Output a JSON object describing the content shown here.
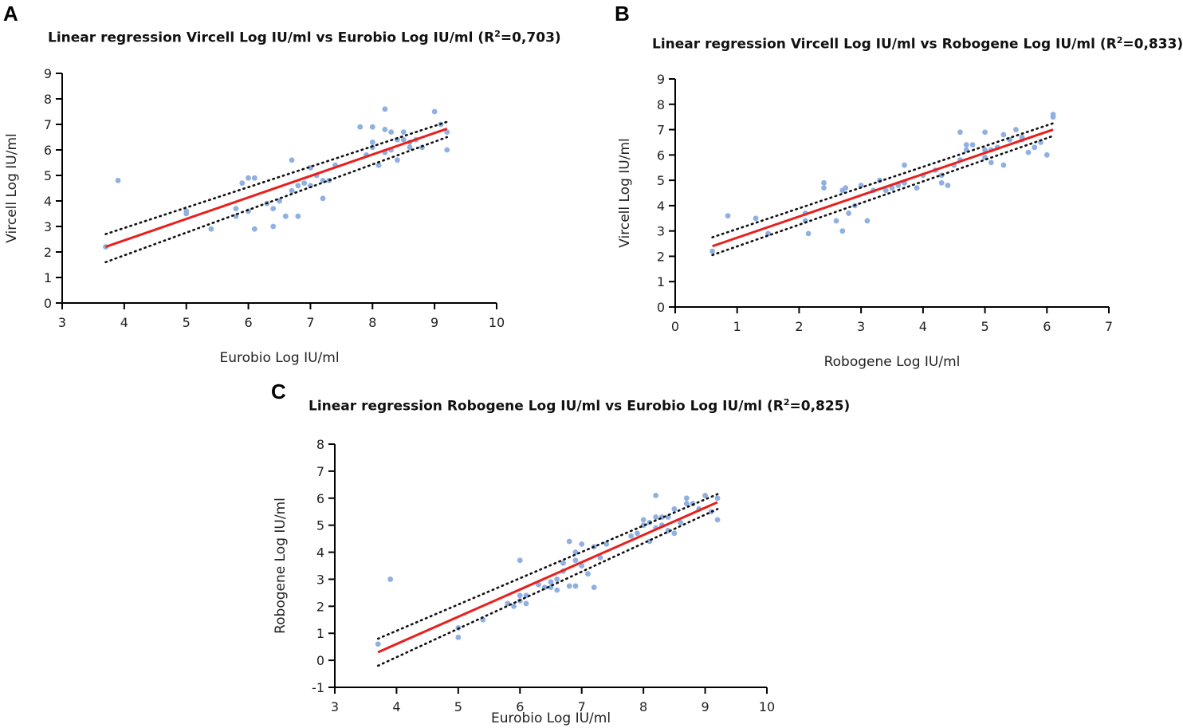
{
  "colors": {
    "points": "#8fb0e0",
    "regression": "#e8201d",
    "confidence": "#111111",
    "axes": "#000000"
  },
  "panels": [
    {
      "letter": "A"
    },
    {
      "letter": "B"
    },
    {
      "letter": "C"
    }
  ],
  "chart_data": [
    {
      "type": "scatter",
      "title": "Linear regression Vircell Log IU/ml vs Eurobio Log IU/ml",
      "r2_label": "(R",
      "r2_sup": "2",
      "r2_value": "=0,703)",
      "xlabel": "Eurobio Log IU/ml",
      "ylabel": "Vircell Log IU/ml",
      "xlim": [
        3,
        10
      ],
      "ylim": [
        0,
        9
      ],
      "xticks": [
        3,
        4,
        5,
        6,
        7,
        8,
        9,
        10
      ],
      "yticks": [
        0,
        1,
        2,
        3,
        4,
        5,
        6,
        7,
        8,
        9
      ],
      "regression": {
        "x": [
          3.7,
          9.2
        ],
        "y": [
          2.2,
          6.83
        ]
      },
      "ci_upper": {
        "x": [
          3.7,
          9.2
        ],
        "y": [
          2.7,
          7.1
        ]
      },
      "ci_lower": {
        "x": [
          3.7,
          9.2
        ],
        "y": [
          1.6,
          6.5
        ]
      },
      "points": [
        [
          3.7,
          2.2
        ],
        [
          3.9,
          4.8
        ],
        [
          5.0,
          3.6
        ],
        [
          5.0,
          3.5
        ],
        [
          5.4,
          2.9
        ],
        [
          5.8,
          3.4
        ],
        [
          5.8,
          3.7
        ],
        [
          5.9,
          4.7
        ],
        [
          6.0,
          4.9
        ],
        [
          6.0,
          3.6
        ],
        [
          6.1,
          4.9
        ],
        [
          6.1,
          2.9
        ],
        [
          6.3,
          3.9
        ],
        [
          6.4,
          3.7
        ],
        [
          6.4,
          3.0
        ],
        [
          6.5,
          4.0
        ],
        [
          6.6,
          3.4
        ],
        [
          6.7,
          5.6
        ],
        [
          6.7,
          4.4
        ],
        [
          6.8,
          4.6
        ],
        [
          6.8,
          3.4
        ],
        [
          6.9,
          4.7
        ],
        [
          7.0,
          5.3
        ],
        [
          7.0,
          4.6
        ],
        [
          7.1,
          5.0
        ],
        [
          7.2,
          4.1
        ],
        [
          7.2,
          4.8
        ],
        [
          7.3,
          4.8
        ],
        [
          7.4,
          5.4
        ],
        [
          7.8,
          6.9
        ],
        [
          7.9,
          5.8
        ],
        [
          8.0,
          6.9
        ],
        [
          8.0,
          6.3
        ],
        [
          8.0,
          6.1
        ],
        [
          8.1,
          5.4
        ],
        [
          8.2,
          7.6
        ],
        [
          8.2,
          6.8
        ],
        [
          8.2,
          5.9
        ],
        [
          8.3,
          6.7
        ],
        [
          8.3,
          6.0
        ],
        [
          8.4,
          6.4
        ],
        [
          8.4,
          5.6
        ],
        [
          8.5,
          6.7
        ],
        [
          8.5,
          6.4
        ],
        [
          8.6,
          6.3
        ],
        [
          8.6,
          6.1
        ],
        [
          8.7,
          6.4
        ],
        [
          8.8,
          6.1
        ],
        [
          9.0,
          7.5
        ],
        [
          9.1,
          7.0
        ],
        [
          9.2,
          6.7
        ],
        [
          9.2,
          6.0
        ]
      ]
    },
    {
      "type": "scatter",
      "title": "Linear regression Vircell Log IU/ml vs Robogene Log IU/ml",
      "r2_label": "(R",
      "r2_sup": "2",
      "r2_value": "=0,833)",
      "xlabel": "Robogene Log IU/ml",
      "ylabel": "Vircell Log IU/ml",
      "xlim": [
        0,
        7
      ],
      "ylim": [
        0,
        9
      ],
      "xticks": [
        0,
        1,
        2,
        3,
        4,
        5,
        6,
        7
      ],
      "yticks": [
        0,
        1,
        2,
        3,
        4,
        5,
        6,
        7,
        8,
        9
      ],
      "regression": {
        "x": [
          0.6,
          6.1
        ],
        "y": [
          2.4,
          7.0
        ]
      },
      "ci_upper": {
        "x": [
          0.6,
          6.1
        ],
        "y": [
          2.75,
          7.25
        ]
      },
      "ci_lower": {
        "x": [
          0.6,
          6.1
        ],
        "y": [
          2.05,
          6.75
        ]
      },
      "points": [
        [
          0.6,
          2.2
        ],
        [
          0.85,
          3.6
        ],
        [
          1.3,
          3.5
        ],
        [
          1.5,
          2.9
        ],
        [
          2.1,
          3.7
        ],
        [
          2.1,
          3.4
        ],
        [
          2.15,
          2.9
        ],
        [
          2.4,
          4.9
        ],
        [
          2.4,
          4.7
        ],
        [
          2.6,
          3.4
        ],
        [
          2.7,
          3.0
        ],
        [
          2.7,
          4.6
        ],
        [
          2.75,
          4.7
        ],
        [
          2.8,
          3.7
        ],
        [
          2.9,
          4.0
        ],
        [
          3.0,
          4.8
        ],
        [
          3.1,
          3.4
        ],
        [
          3.2,
          4.6
        ],
        [
          3.3,
          5.0
        ],
        [
          3.4,
          4.6
        ],
        [
          3.5,
          4.7
        ],
        [
          3.6,
          4.8
        ],
        [
          3.7,
          5.6
        ],
        [
          3.7,
          4.9
        ],
        [
          3.9,
          4.7
        ],
        [
          4.0,
          5.2
        ],
        [
          4.2,
          5.4
        ],
        [
          4.3,
          4.9
        ],
        [
          4.3,
          5.2
        ],
        [
          4.4,
          4.8
        ],
        [
          4.5,
          5.6
        ],
        [
          4.6,
          6.9
        ],
        [
          4.6,
          5.8
        ],
        [
          4.7,
          6.4
        ],
        [
          4.7,
          6.2
        ],
        [
          4.8,
          6.4
        ],
        [
          5.0,
          6.9
        ],
        [
          5.0,
          6.2
        ],
        [
          5.0,
          5.9
        ],
        [
          5.1,
          6.2
        ],
        [
          5.1,
          5.7
        ],
        [
          5.2,
          6.3
        ],
        [
          5.3,
          6.8
        ],
        [
          5.3,
          5.6
        ],
        [
          5.4,
          6.6
        ],
        [
          5.5,
          7.0
        ],
        [
          5.6,
          6.6
        ],
        [
          5.6,
          6.7
        ],
        [
          5.7,
          6.1
        ],
        [
          5.8,
          6.3
        ],
        [
          5.9,
          6.5
        ],
        [
          6.0,
          6.0
        ],
        [
          6.1,
          7.6
        ],
        [
          6.1,
          7.5
        ]
      ]
    },
    {
      "type": "scatter",
      "title": "Linear regression Robogene Log IU/ml vs Eurobio Log IU/ml",
      "r2_label": "(R",
      "r2_sup": "2",
      "r2_value": "=0,825)",
      "xlabel": "Eurobio Log IU/ml",
      "ylabel": "Robogene Log IU/ml",
      "xlim": [
        3,
        10
      ],
      "ylim": [
        -1,
        8
      ],
      "xticks": [
        3,
        4,
        5,
        6,
        7,
        8,
        9,
        10
      ],
      "yticks": [
        -1,
        0,
        1,
        2,
        3,
        4,
        5,
        6,
        7,
        8
      ],
      "regression": {
        "x": [
          3.7,
          9.2
        ],
        "y": [
          0.3,
          5.85
        ]
      },
      "ci_upper": {
        "x": [
          3.7,
          9.2
        ],
        "y": [
          0.8,
          6.15
        ]
      },
      "ci_lower": {
        "x": [
          3.7,
          9.2
        ],
        "y": [
          -0.2,
          5.6
        ]
      },
      "points": [
        [
          3.7,
          0.6
        ],
        [
          3.9,
          3.0
        ],
        [
          5.0,
          1.2
        ],
        [
          5.0,
          0.85
        ],
        [
          5.4,
          1.5
        ],
        [
          5.8,
          2.1
        ],
        [
          5.9,
          2.0
        ],
        [
          6.0,
          3.7
        ],
        [
          6.0,
          2.4
        ],
        [
          6.0,
          2.2
        ],
        [
          6.1,
          2.1
        ],
        [
          6.1,
          2.4
        ],
        [
          6.3,
          2.8
        ],
        [
          6.4,
          2.7
        ],
        [
          6.5,
          2.9
        ],
        [
          6.5,
          2.7
        ],
        [
          6.6,
          3.0
        ],
        [
          6.6,
          2.6
        ],
        [
          6.7,
          3.6
        ],
        [
          6.7,
          3.3
        ],
        [
          6.8,
          4.4
        ],
        [
          6.8,
          2.75
        ],
        [
          6.9,
          4.0
        ],
        [
          6.9,
          3.7
        ],
        [
          6.9,
          2.75
        ],
        [
          7.0,
          4.3
        ],
        [
          7.0,
          3.5
        ],
        [
          7.1,
          3.2
        ],
        [
          7.2,
          4.2
        ],
        [
          7.2,
          2.7
        ],
        [
          7.3,
          3.8
        ],
        [
          7.4,
          4.3
        ],
        [
          7.8,
          4.6
        ],
        [
          7.9,
          4.7
        ],
        [
          8.0,
          5.2
        ],
        [
          8.0,
          5.0
        ],
        [
          8.1,
          5.1
        ],
        [
          8.1,
          4.4
        ],
        [
          8.2,
          6.1
        ],
        [
          8.2,
          5.3
        ],
        [
          8.2,
          4.9
        ],
        [
          8.3,
          5.3
        ],
        [
          8.3,
          5.0
        ],
        [
          8.4,
          5.3
        ],
        [
          8.4,
          4.8
        ],
        [
          8.5,
          5.6
        ],
        [
          8.5,
          4.7
        ],
        [
          8.6,
          5.1
        ],
        [
          8.7,
          6.0
        ],
        [
          8.7,
          5.8
        ],
        [
          8.8,
          5.8
        ],
        [
          8.9,
          5.6
        ],
        [
          9.0,
          6.1
        ],
        [
          9.1,
          5.5
        ],
        [
          9.2,
          6.0
        ],
        [
          9.2,
          5.2
        ]
      ]
    }
  ]
}
